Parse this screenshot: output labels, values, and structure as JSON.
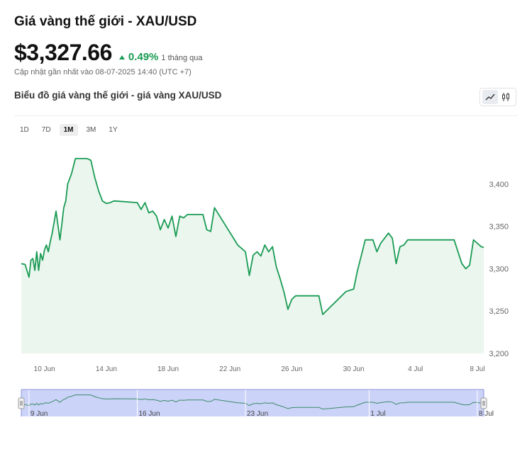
{
  "header": {
    "title": "Giá vàng thế giới - XAU/USD",
    "price": "$3,327.66",
    "change_pct": "0.49%",
    "change_period": "1 tháng qua",
    "updated": "Cập nhật gần nhất vào 08-07-2025 14:40 (UTC +7)"
  },
  "chart_header": {
    "subtitle": "Biểu đồ giá vàng thế giới - giá vàng XAU/USD",
    "view_modes": [
      {
        "icon": "line-chart-icon",
        "active": true
      },
      {
        "icon": "candlestick-icon",
        "active": false
      }
    ]
  },
  "ranges": [
    {
      "label": "1D",
      "active": false
    },
    {
      "label": "7D",
      "active": false
    },
    {
      "label": "1M",
      "active": true
    },
    {
      "label": "3M",
      "active": false
    },
    {
      "label": "1Y",
      "active": false
    }
  ],
  "colors": {
    "line": "#1a9b54",
    "area": "#eaf6ee",
    "up": "#1a9b54",
    "navigator_mask": "#ccd3f8"
  },
  "chart_data": {
    "type": "area",
    "x": [
      "2025-06-08T12:00",
      "2025-06-08T18:00",
      "2025-06-09T00:00",
      "2025-06-09T03:00",
      "2025-06-09T06:00",
      "2025-06-09T09:00",
      "2025-06-09T12:00",
      "2025-06-09T15:00",
      "2025-06-09T18:00",
      "2025-06-09T21:00",
      "2025-06-10T00:00",
      "2025-06-10T03:00",
      "2025-06-10T06:00",
      "2025-06-10T09:00",
      "2025-06-10T12:00",
      "2025-06-10T18:00",
      "2025-06-11T00:00",
      "2025-06-11T06:00",
      "2025-06-11T09:00",
      "2025-06-11T12:00",
      "2025-06-11T18:00",
      "2025-06-12T00:00",
      "2025-06-12T06:00",
      "2025-06-12T12:00",
      "2025-06-12T15:00",
      "2025-06-12T18:00",
      "2025-06-13T00:00",
      "2025-06-13T06:00",
      "2025-06-13T12:00",
      "2025-06-13T18:00",
      "2025-06-14T00:00",
      "2025-06-14T06:00",
      "2025-06-14T12:00",
      "2025-06-16T00:00",
      "2025-06-16T06:00",
      "2025-06-16T12:00",
      "2025-06-16T18:00",
      "2025-06-17T00:00",
      "2025-06-17T06:00",
      "2025-06-17T12:00",
      "2025-06-17T18:00",
      "2025-06-18T00:00",
      "2025-06-18T06:00",
      "2025-06-18T12:00",
      "2025-06-18T18:00",
      "2025-06-19T00:00",
      "2025-06-19T06:00",
      "2025-06-19T12:00",
      "2025-06-19T18:00",
      "2025-06-20T00:00",
      "2025-06-20T06:00",
      "2025-06-20T12:00",
      "2025-06-20T18:00",
      "2025-06-21T00:00",
      "2025-06-22T12:00",
      "2025-06-23T00:00",
      "2025-06-23T06:00",
      "2025-06-23T12:00",
      "2025-06-23T18:00",
      "2025-06-24T00:00",
      "2025-06-24T06:00",
      "2025-06-24T12:00",
      "2025-06-24T18:00",
      "2025-06-25T00:00",
      "2025-06-25T06:00",
      "2025-06-25T12:00",
      "2025-06-25T18:00",
      "2025-06-26T00:00",
      "2025-06-26T06:00",
      "2025-06-26T12:00",
      "2025-06-26T18:00",
      "2025-06-27T00:00",
      "2025-06-27T06:00",
      "2025-06-27T12:00",
      "2025-06-27T18:00",
      "2025-06-28T00:00",
      "2025-06-29T12:00",
      "2025-06-30T00:00",
      "2025-06-30T06:00",
      "2025-06-30T12:00",
      "2025-06-30T18:00",
      "2025-07-01T00:00",
      "2025-07-01T06:00",
      "2025-07-01T12:00",
      "2025-07-01T18:00",
      "2025-07-02T00:00",
      "2025-07-02T06:00",
      "2025-07-02T12:00",
      "2025-07-02T18:00",
      "2025-07-03T00:00",
      "2025-07-03T06:00",
      "2025-07-03T12:00",
      "2025-07-03T18:00",
      "2025-07-04T00:00",
      "2025-07-04T06:00",
      "2025-07-04T12:00",
      "2025-07-04T18:00",
      "2025-07-05T00:00",
      "2025-07-06T12:00",
      "2025-07-07T00:00",
      "2025-07-07T06:00",
      "2025-07-07T12:00",
      "2025-07-07T18:00",
      "2025-07-08T00:00",
      "2025-07-08T06:00",
      "2025-07-08T10:00"
    ],
    "y": [
      3306,
      3305,
      3290,
      3310,
      3312,
      3298,
      3320,
      3298,
      3318,
      3310,
      3322,
      3328,
      3320,
      3332,
      3342,
      3368,
      3334,
      3372,
      3380,
      3400,
      3412,
      3430,
      3430,
      3430,
      3430,
      3430,
      3428,
      3408,
      3392,
      3380,
      3377,
      3378,
      3380,
      3378,
      3370,
      3378,
      3366,
      3368,
      3362,
      3346,
      3358,
      3348,
      3362,
      3338,
      3362,
      3360,
      3364,
      3364,
      3364,
      3364,
      3364,
      3346,
      3344,
      3372,
      3328,
      3320,
      3292,
      3316,
      3320,
      3315,
      3328,
      3320,
      3326,
      3302,
      3288,
      3272,
      3252,
      3264,
      3268,
      3268,
      3268,
      3268,
      3268,
      3268,
      3268,
      3246,
      3273,
      3276,
      3298,
      3316,
      3334,
      3334,
      3334,
      3320,
      3330,
      3336,
      3342,
      3336,
      3306,
      3326,
      3328,
      3334,
      3334,
      3334,
      3334,
      3334,
      3334,
      3334,
      3334,
      3306,
      3300,
      3304,
      3334,
      3330,
      3326,
      3325
    ],
    "x_ticks": [
      "10 Jun",
      "14 Jun",
      "18 Jun",
      "22 Jun",
      "26 Jun",
      "30 Jun",
      "4 Jul",
      "8 Jul"
    ],
    "y_ticks": [
      "3,400",
      "3,350",
      "3,300",
      "3,250",
      "3,200"
    ],
    "ylim": [
      3200,
      3450
    ],
    "grid": false,
    "navigator": {
      "ticks": [
        "9 Jun",
        "16 Jun",
        "23 Jun",
        "1 Jul",
        "8 Jul"
      ]
    }
  }
}
